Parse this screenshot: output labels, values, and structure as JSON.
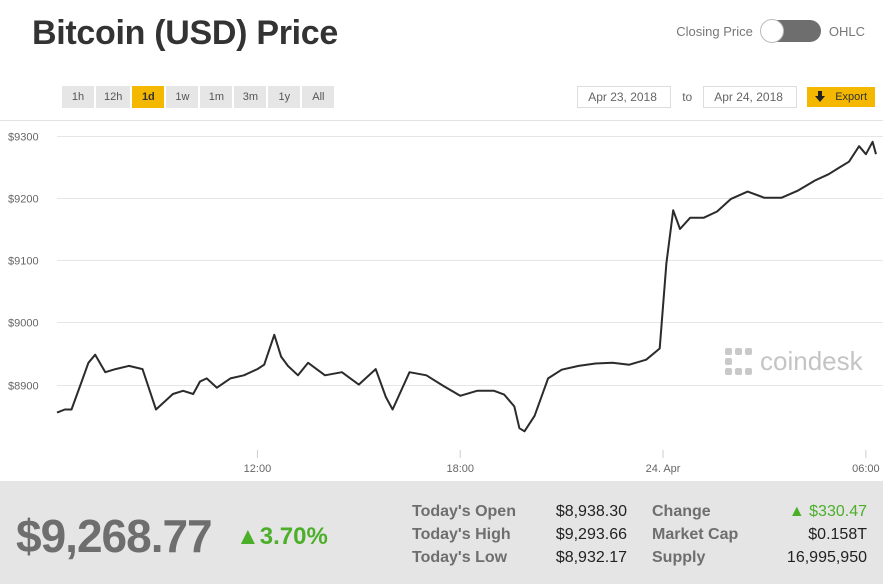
{
  "page_title": "Bitcoin (USD) Price",
  "toggle": {
    "left_label": "Closing Price",
    "right_label": "OHLC"
  },
  "ranges": [
    "1h",
    "12h",
    "1d",
    "1w",
    "1m",
    "3m",
    "1y",
    "All"
  ],
  "active_range": "1d",
  "date_range": {
    "from": "Apr 23, 2018",
    "to_label": "to",
    "to": "Apr 24, 2018"
  },
  "export_label": "Export",
  "watermark": "coindesk",
  "colors": {
    "accent": "#f5b800",
    "line": "#2b2b2b",
    "positive": "#4caf2a"
  },
  "icons": {
    "export": "download-arrow-icon",
    "change_up": "triangle-up-icon",
    "logo": "coindesk-logo-icon"
  },
  "chart_data": {
    "type": "line",
    "y_tick_labels": [
      "$8900",
      "$9000",
      "$9100",
      "$9200",
      "$9300"
    ],
    "y_ticks": [
      8900,
      9000,
      9100,
      9200,
      9300
    ],
    "ylim": [
      8795,
      9325
    ],
    "x_tick_labels": [
      "12:00",
      "18:00",
      "24. Apr",
      "06:00"
    ],
    "x_ticks": [
      12,
      18,
      24,
      30
    ],
    "xlim": [
      6.07,
      30.3
    ],
    "grid": true,
    "series": [
      {
        "x": [
          6.07,
          6.3,
          6.5,
          6.8,
          7.0,
          7.2,
          7.5,
          7.8,
          8.2,
          8.6,
          9.0,
          9.5,
          9.8,
          10.1,
          10.3,
          10.5,
          10.8,
          11.2,
          11.6,
          12.0,
          12.2,
          12.5,
          12.7,
          12.9,
          13.2,
          13.5,
          14.0,
          14.5,
          15.0,
          15.5,
          15.8,
          16.0,
          16.5,
          17.0,
          17.5,
          18.0,
          18.5,
          19.0,
          19.3,
          19.6,
          19.75,
          19.9,
          20.2,
          20.6,
          21.0,
          21.5,
          22.0,
          22.5,
          23.0,
          23.5,
          23.9,
          24.1,
          24.3,
          24.5,
          24.8,
          25.2,
          25.6,
          26.0,
          26.5,
          27.0,
          27.5,
          28.0,
          28.5,
          28.9,
          29.2,
          29.5,
          29.8,
          30.0,
          30.2,
          30.3
        ],
        "values": [
          8855,
          8860,
          8860,
          8905,
          8935,
          8948,
          8920,
          8925,
          8930,
          8925,
          8860,
          8885,
          8890,
          8885,
          8905,
          8910,
          8895,
          8910,
          8915,
          8925,
          8932,
          8980,
          8945,
          8930,
          8915,
          8935,
          8915,
          8920,
          8900,
          8925,
          8880,
          8860,
          8920,
          8915,
          8898,
          8882,
          8890,
          8890,
          8884,
          8865,
          8830,
          8825,
          8850,
          8910,
          8924,
          8930,
          8934,
          8935,
          8932,
          8940,
          8958,
          9095,
          9180,
          9150,
          9168,
          9168,
          9178,
          9198,
          9210,
          9200,
          9200,
          9212,
          9228,
          9238,
          9248,
          9258,
          9283,
          9270,
          9290,
          9270
        ]
      }
    ]
  },
  "footer": {
    "price": "$9,268.77",
    "change_pct": "3.70%",
    "stats_left": [
      {
        "label": "Today's Open",
        "value": "$8,938.30"
      },
      {
        "label": "Today's High",
        "value": "$9,293.66"
      },
      {
        "label": "Today's Low",
        "value": "$8,932.17"
      }
    ],
    "stats_right": [
      {
        "label": "Change",
        "value": "$330.47"
      },
      {
        "label": "Market Cap",
        "value": "$0.158T"
      },
      {
        "label": "Supply",
        "value": "16,995,950"
      }
    ]
  }
}
